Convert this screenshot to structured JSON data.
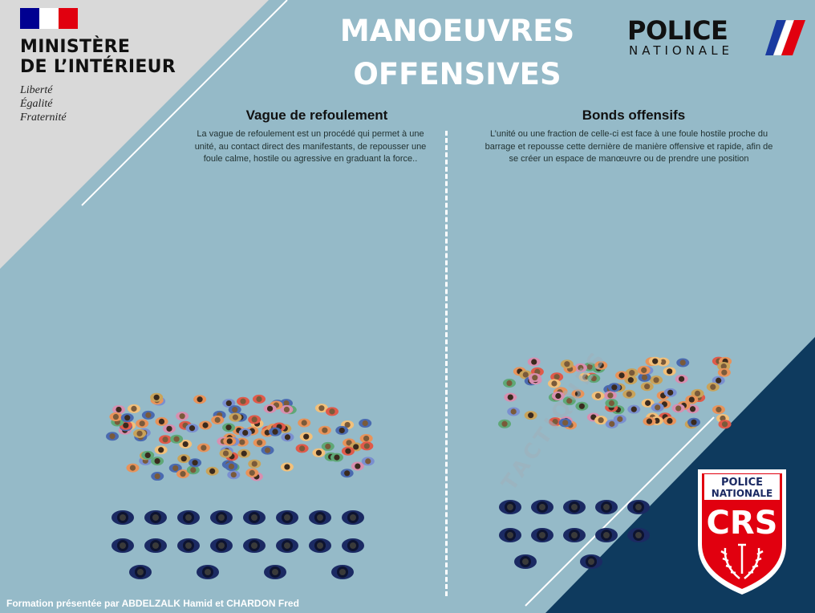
{
  "ministry": {
    "name_line1": "MINISTÈRE",
    "name_line2": "DE L’INTÉRIEUR",
    "motto": [
      "Liberté",
      "Égalité",
      "Fraternité"
    ]
  },
  "title": {
    "line1": "MANOEUVRES",
    "line2": "OFFENSIVES"
  },
  "police_logo": {
    "top": "POLICE",
    "bottom": "NATIONALE"
  },
  "sections": [
    {
      "title": "Vague de refoulement",
      "description": "La vague de refoulement est un procédé qui permet à une unité, au contact direct des manifestants, de repousser une foule calme, hostile ou agressive en graduant la force.."
    },
    {
      "title": "Bonds offensifs",
      "description": "L’unité ou une fraction de celle-ci est face à une foule hostile proche du barrage et repousse cette dernière de manière offensive et rapide, afin de se créer un espace de manœuvre ou de prendre une position"
    }
  ],
  "watermark": "TACTIQUES",
  "crs_badge": {
    "line1": "POLICE",
    "line2": "NATIONALE",
    "acronym": "CRS"
  },
  "credit": "Formation présentée par ABDELZALK Hamid et CHARDON Fred",
  "colors": {
    "background": "#95bac8",
    "corner_grey": "#d9d9d9",
    "corner_navy": "#0e3a5e",
    "flag_blue": "#000091",
    "flag_red": "#e1000f",
    "badge_red": "#e1000f",
    "officer_navy": "#1b2a63"
  }
}
